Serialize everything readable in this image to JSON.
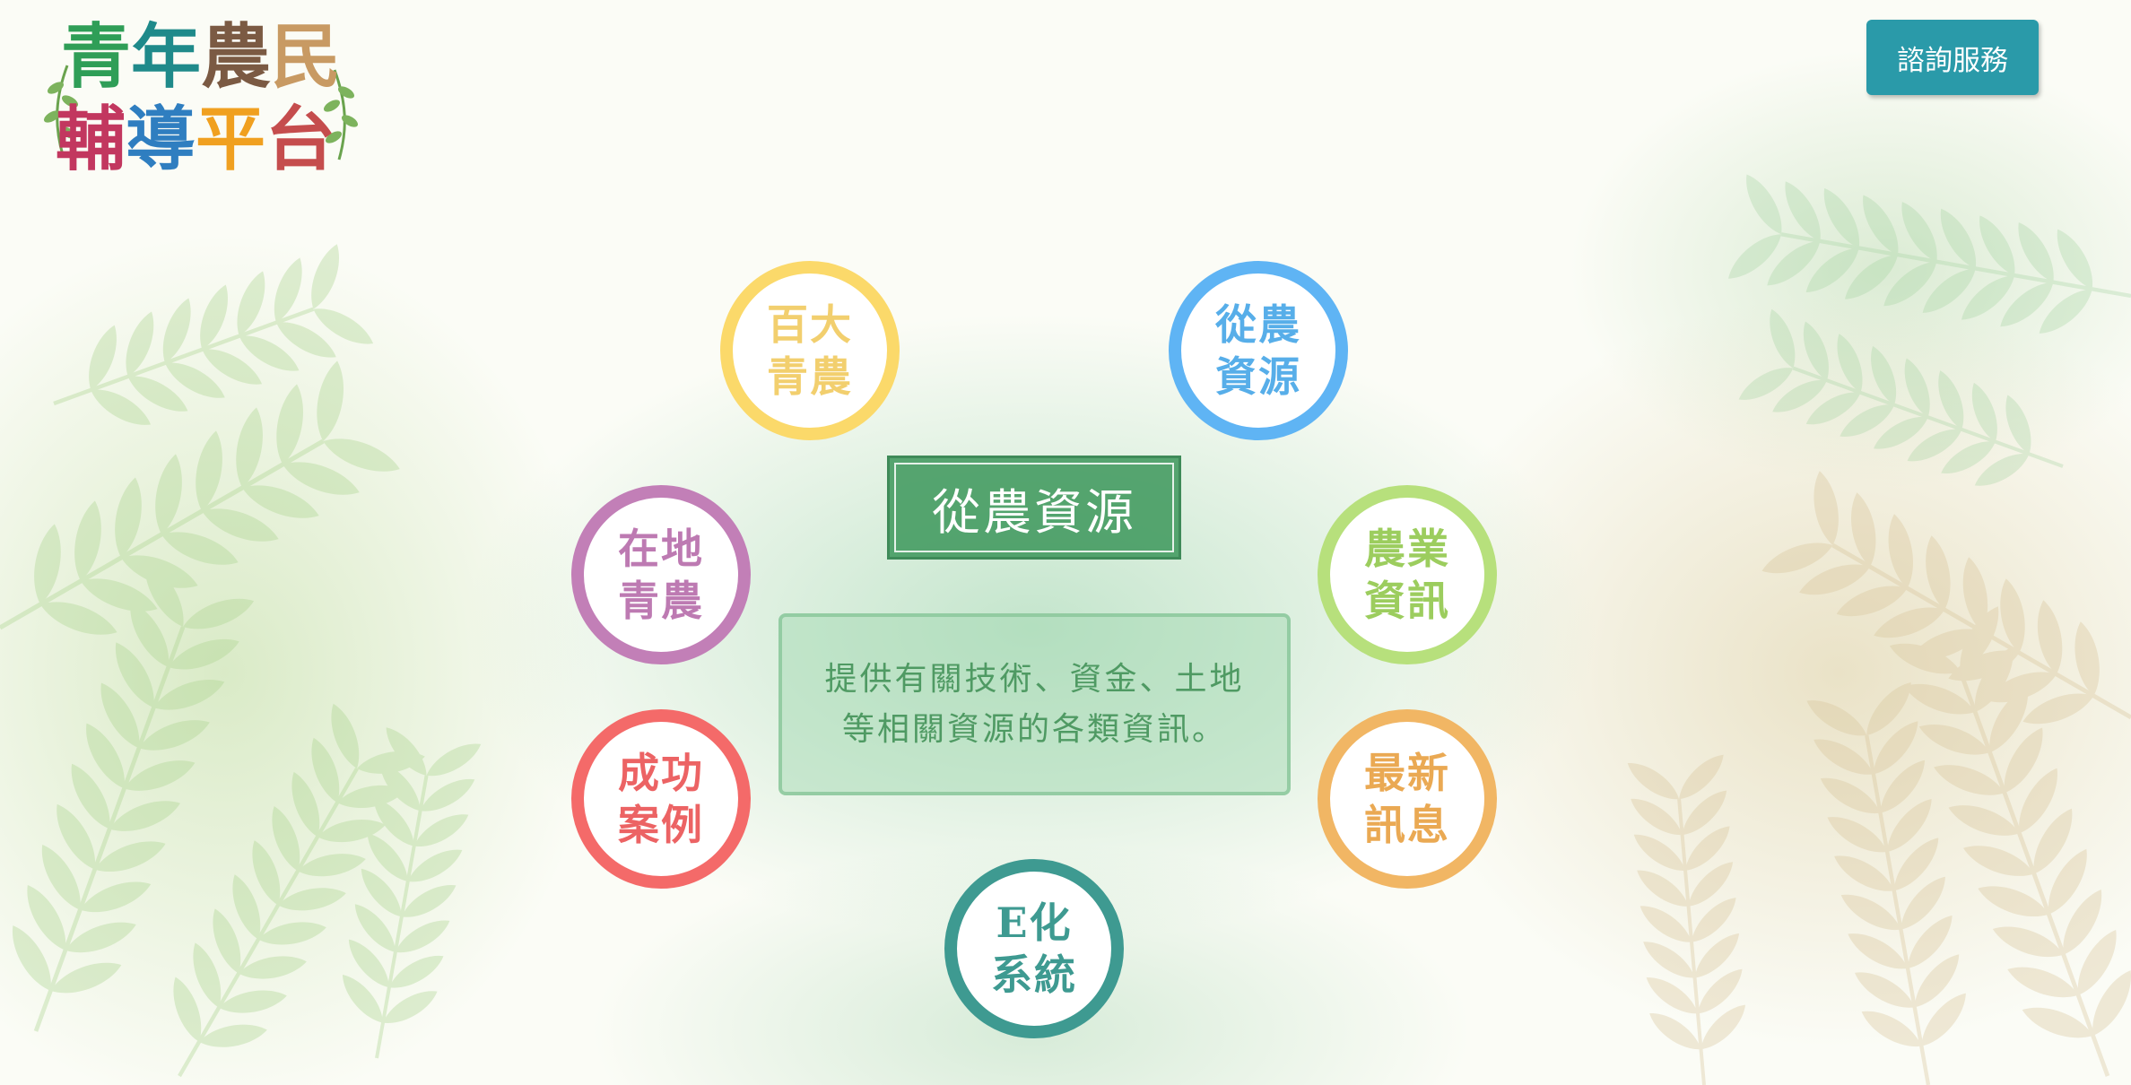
{
  "logo": {
    "row1": [
      {
        "char": "青",
        "color": "#2f9e57"
      },
      {
        "char": "年",
        "color": "#1f8a8a"
      },
      {
        "char": "農",
        "color": "#7b5a43"
      },
      {
        "char": "民",
        "color": "#c89a63"
      }
    ],
    "row2": [
      {
        "char": "輔",
        "color": "#c2375f"
      },
      {
        "char": "導",
        "color": "#2f7ec0"
      },
      {
        "char": "平",
        "color": "#f0a020"
      },
      {
        "char": "台",
        "color": "#c54d4d"
      }
    ],
    "sprig_icon": "leaf-sprig-icon"
  },
  "header": {
    "consult_label": "諮詢服務"
  },
  "menu": {
    "items": [
      {
        "id": "hundred-young-farmers",
        "label": "百大青農",
        "color": "#fbd96a",
        "text_color": "#f2cf6e"
      },
      {
        "id": "farming-resources",
        "label": "從農資源",
        "color": "#5fb4f4",
        "text_color": "#57aee9"
      },
      {
        "id": "local-young-farmers",
        "label": "在地青農",
        "color": "#c27fb7",
        "text_color": "#bd7ab2"
      },
      {
        "id": "agri-info",
        "label": "農業資訊",
        "color": "#b7e07c",
        "text_color": "#9ccd5e"
      },
      {
        "id": "success-cases",
        "label": "成功案例",
        "color": "#f46a69",
        "text_color": "#ec6364"
      },
      {
        "id": "latest-news",
        "label": "最新訊息",
        "color": "#f1b664",
        "text_color": "#eaa953"
      },
      {
        "id": "e-system",
        "label": "E化系統",
        "color": "#3e9a91",
        "text_color": "#3e9a91"
      }
    ]
  },
  "selected": {
    "title": "從農資源",
    "description": "提供有關技術、資金、土地等相關資源的各類資訊。"
  }
}
